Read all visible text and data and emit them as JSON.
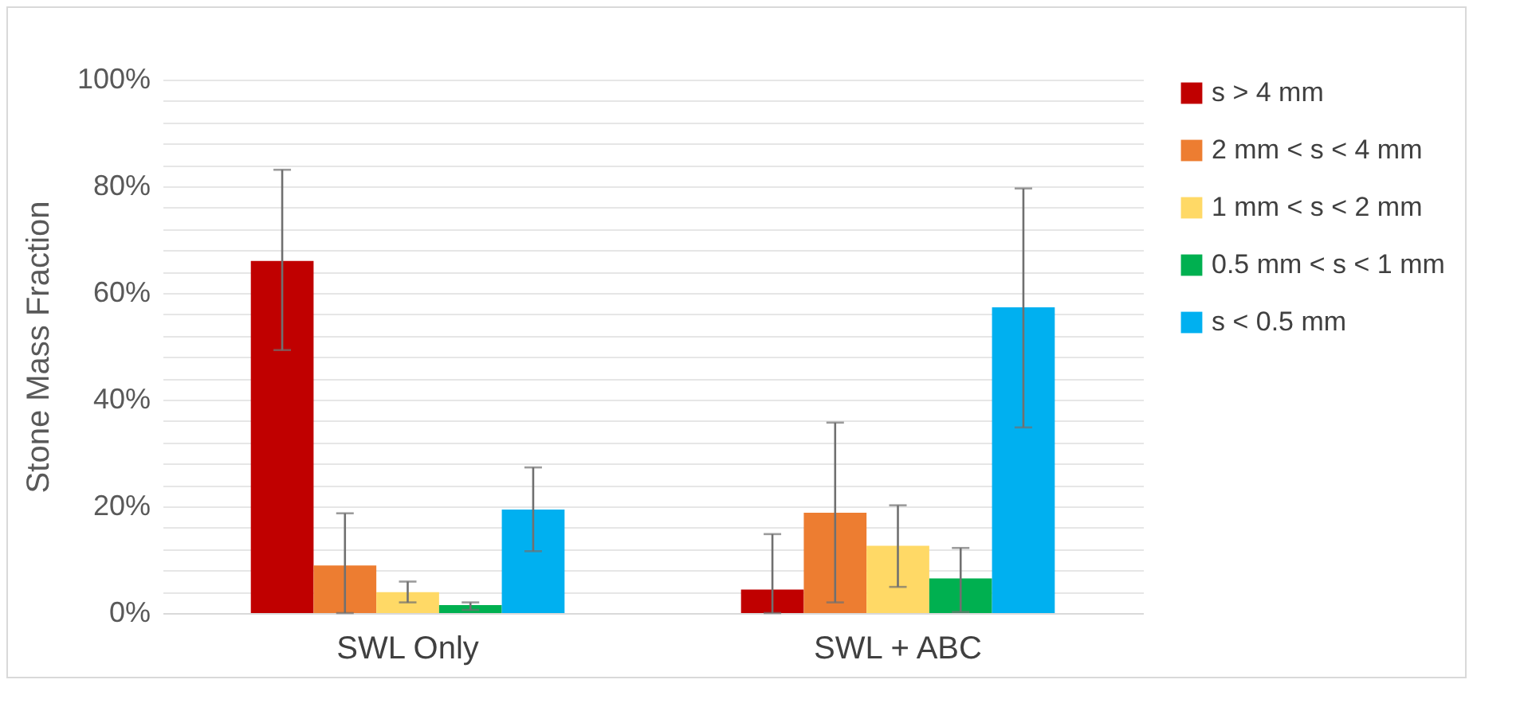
{
  "chart_data": {
    "type": "bar",
    "ylabel": "Stone Mass Fraction",
    "categories": [
      "SWL Only",
      "SWL + ABC"
    ],
    "series": [
      {
        "name": "s > 4 mm",
        "color": "#c00000",
        "values": [
          66,
          4.4
        ],
        "errors": [
          [
            49.3,
            83.1
          ],
          [
            0,
            14.8
          ]
        ]
      },
      {
        "name": "2 mm < s < 4 mm",
        "color": "#ed7d31",
        "values": [
          8.9,
          18.8
        ],
        "errors": [
          [
            0,
            18.7
          ],
          [
            2,
            35.7
          ]
        ]
      },
      {
        "name": "1 mm < s < 2 mm",
        "color": "#ffd966",
        "values": [
          3.9,
          12.6
        ],
        "errors": [
          [
            2,
            5.9
          ],
          [
            4.9,
            20.2
          ]
        ]
      },
      {
        "name": "0.5 mm < s < 1 mm",
        "color": "#00b050",
        "values": [
          1.5,
          6.5
        ],
        "errors": [
          [
            0.6,
            2
          ],
          [
            0.2,
            12.2
          ]
        ]
      },
      {
        "name": "s < 0.5 mm",
        "color": "#00b0f0",
        "values": [
          19.4,
          57.3
        ],
        "errors": [
          [
            11.6,
            27.3
          ],
          [
            34.8,
            79.6
          ]
        ]
      }
    ],
    "ylim": [
      0,
      100
    ],
    "yticks": [
      {
        "value": 0,
        "label": "0%"
      },
      {
        "value": 4,
        "label": null
      },
      {
        "value": 8,
        "label": null
      },
      {
        "value": 12,
        "label": null
      },
      {
        "value": 16,
        "label": null
      },
      {
        "value": 20,
        "label": "20%"
      },
      {
        "value": 24,
        "label": null
      },
      {
        "value": 28,
        "label": null
      },
      {
        "value": 32,
        "label": null
      },
      {
        "value": 36,
        "label": null
      },
      {
        "value": 40,
        "label": "40%"
      },
      {
        "value": 44,
        "label": null
      },
      {
        "value": 48,
        "label": null
      },
      {
        "value": 52,
        "label": null
      },
      {
        "value": 56,
        "label": null
      },
      {
        "value": 60,
        "label": "60%"
      },
      {
        "value": 64,
        "label": null
      },
      {
        "value": 68,
        "label": null
      },
      {
        "value": 72,
        "label": null
      },
      {
        "value": 76,
        "label": null
      },
      {
        "value": 80,
        "label": "80%"
      },
      {
        "value": 84,
        "label": null
      },
      {
        "value": 88,
        "label": null
      },
      {
        "value": 92,
        "label": null
      },
      {
        "value": 96,
        "label": null
      },
      {
        "value": 100,
        "label": "100%"
      }
    ],
    "grid": "y",
    "legend": "right"
  }
}
